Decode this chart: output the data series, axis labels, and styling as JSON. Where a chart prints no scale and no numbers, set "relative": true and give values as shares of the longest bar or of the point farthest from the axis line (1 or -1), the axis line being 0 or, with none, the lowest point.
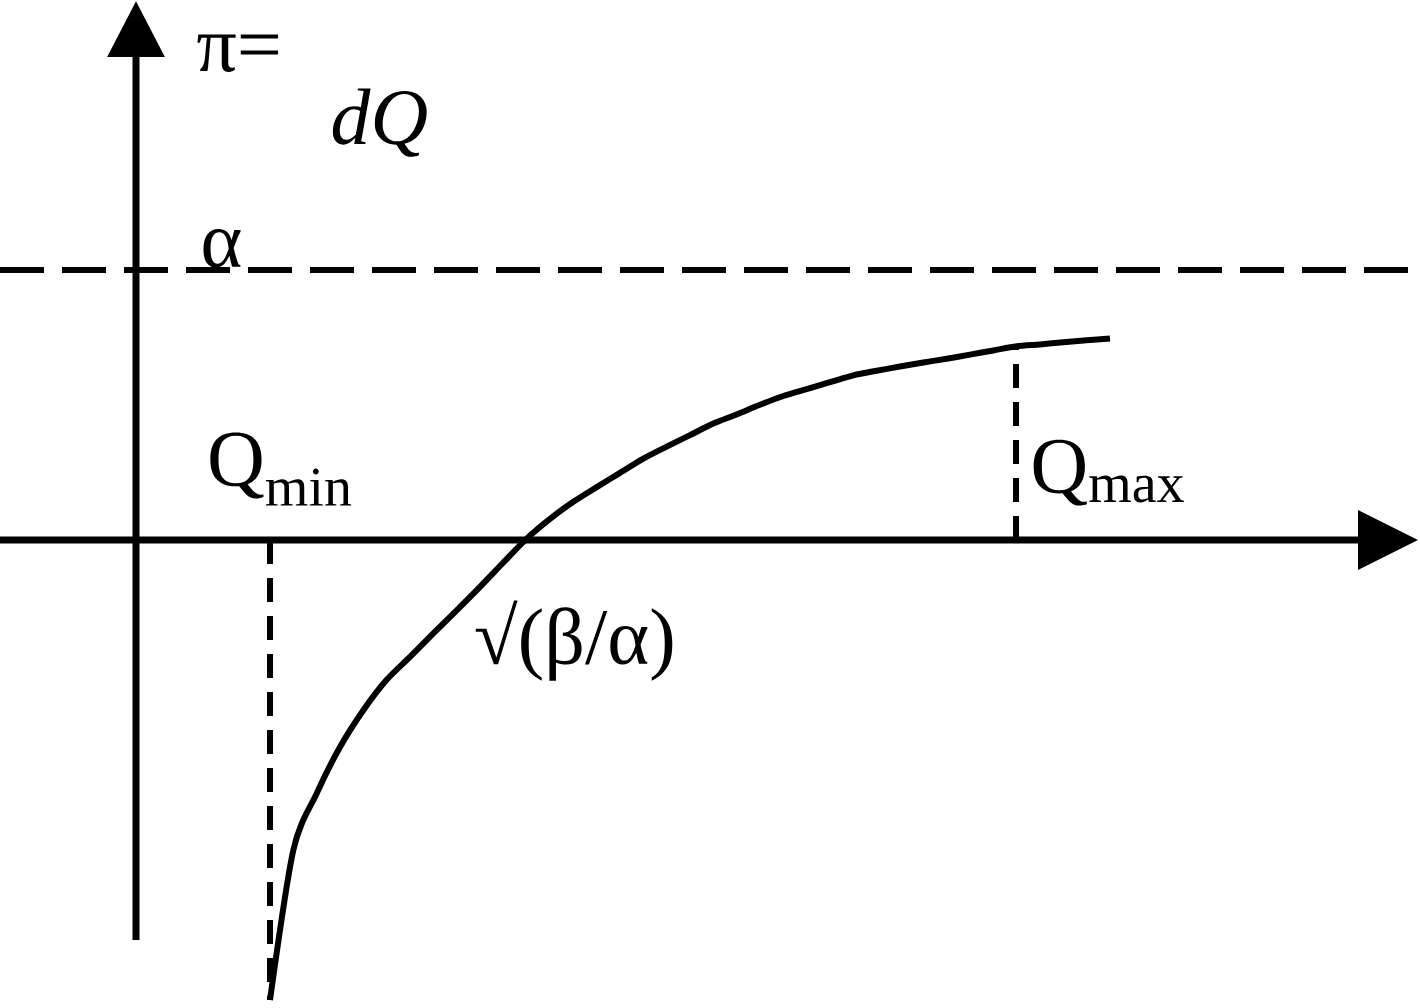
{
  "chart_data": {
    "type": "line",
    "relative": true,
    "ylabel": "π=",
    "annotations": [
      "dQ",
      "Q$_{min}$",
      "Q$_{max}$",
      "√(β/α)"
    ],
    "categories": [
      null,
      null,
      null,
      null,
      null,
      null,
      null,
      null,
      null,
      null,
      null,
      null,
      null,
      null,
      null,
      null,
      null,
      null,
      null,
      null,
      null,
      null,
      null,
      null,
      null,
      null,
      null,
      null,
      null,
      null,
      null,
      null,
      null,
      null,
      null,
      null,
      null
    ],
    "series": [
      {
        "color": "#000000",
        "line_style": "solid",
        "values": [
          -1,
          -0.674,
          -0.551,
          -0.45,
          -0.37,
          -0.304,
          -0.254,
          -0.203,
          -0.153,
          -0.102,
          -0.049,
          0.003,
          0.046,
          0.083,
          0.115,
          0.146,
          0.177,
          0.203,
          0.228,
          0.253,
          0.273,
          0.294,
          0.313,
          0.328,
          0.343,
          0.358,
          0.368,
          0.377,
          0.386,
          0.394,
          0.403,
          0.412,
          0.421,
          0.425,
          0.43,
          0.434,
          0.438
        ]
      }
    ],
    "ref_lines": [
      {
        "axis": "y",
        "value": 0.587,
        "label": "α",
        "color": "#000000",
        "line_style": "dashed"
      }
    ]
  }
}
